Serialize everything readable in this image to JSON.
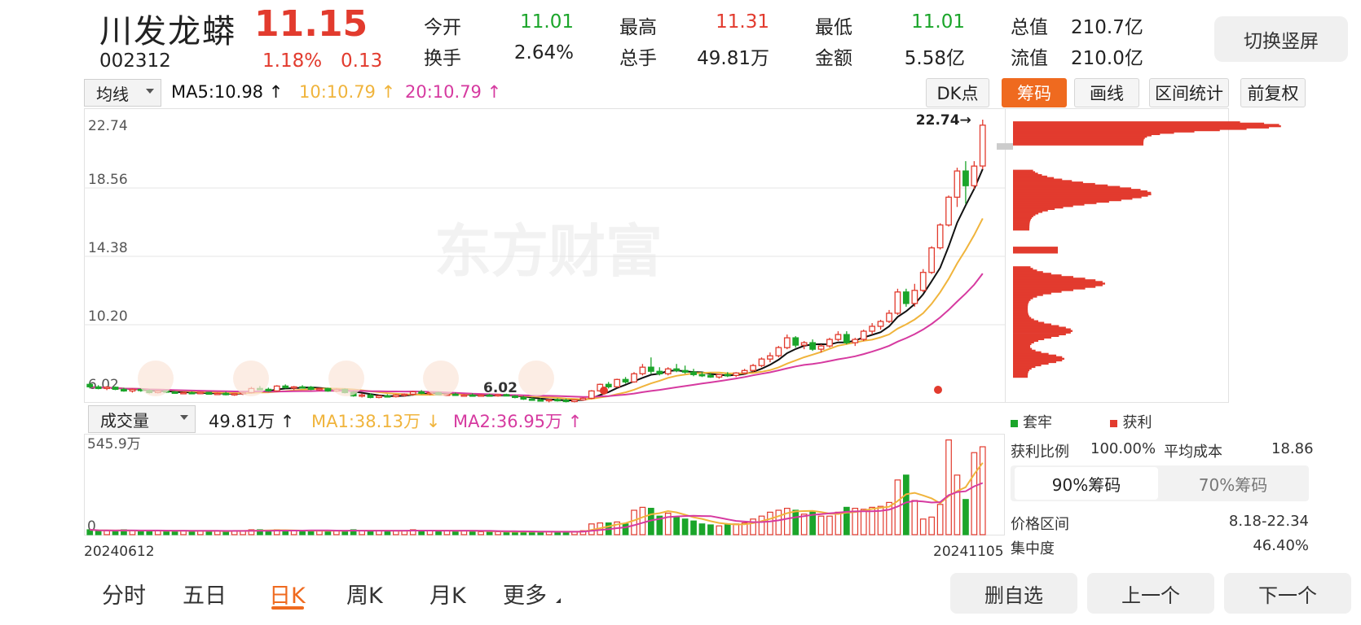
{
  "header": {
    "name": "川发龙蟒",
    "price": "11.15",
    "code": "002312",
    "change_pct": "1.18%",
    "change_abs": "0.13",
    "switch_label": "切换竖屏",
    "quotes": [
      {
        "label": "今开",
        "value": "11.01",
        "color": "green"
      },
      {
        "label": "最高",
        "value": "11.31",
        "color": "red"
      },
      {
        "label": "最低",
        "value": "11.01",
        "color": "green"
      },
      {
        "label": "总值",
        "value": "210.7亿",
        "color": "dark"
      },
      {
        "label": "换手",
        "value": "2.64%",
        "color": "dark"
      },
      {
        "label": "总手",
        "value": "49.81万",
        "color": "dark"
      },
      {
        "label": "金额",
        "value": "5.58亿",
        "color": "dark"
      },
      {
        "label": "流值",
        "value": "210.0亿",
        "color": "dark"
      }
    ]
  },
  "toolbar": {
    "ma_dropdown": "均线",
    "ma5": "MA5:10.98 ↑",
    "ma10": "10:10.79 ↑",
    "ma20": "20:10.79 ↑",
    "dk_label": "DK点",
    "buttons": [
      "筹码",
      "画线",
      "区间统计",
      "前复权"
    ]
  },
  "volume_bar": {
    "dropdown": "成交量",
    "vol": "49.81万 ↑",
    "ma1": "MA1:38.13万 ↓",
    "ma2": "MA2:36.95万 ↑"
  },
  "colors": {
    "up": "#e23b2e",
    "down": "#1ba52a",
    "ma5": "#111111",
    "ma10": "#f0b43c",
    "ma20": "#d63aa0",
    "accent": "#ef6a1f"
  },
  "chart_data": {
    "type": "candlestick",
    "watermark": "东方财富",
    "y_ticks": [
      "22.74",
      "18.56",
      "14.38",
      "10.20",
      "6.02"
    ],
    "ylim": [
      6.02,
      22.74
    ],
    "max_label": "22.74→",
    "low_label": "6.02",
    "x_labels": [
      "20240612",
      "20241105"
    ],
    "volume_max_label": "545.9万",
    "volume_zero_label": "0",
    "candles": [
      [
        6.55,
        6.65,
        6.3,
        6.4
      ],
      [
        6.4,
        6.5,
        6.25,
        6.3
      ],
      [
        6.3,
        6.45,
        6.2,
        6.38
      ],
      [
        6.38,
        6.42,
        6.2,
        6.25
      ],
      [
        6.25,
        6.35,
        6.1,
        6.15
      ],
      [
        6.15,
        6.3,
        6.05,
        6.25
      ],
      [
        6.25,
        6.3,
        6.1,
        6.18
      ],
      [
        6.18,
        6.25,
        6.0,
        6.05
      ],
      [
        6.05,
        6.2,
        6.0,
        6.15
      ],
      [
        6.15,
        6.2,
        6.02,
        6.08
      ],
      [
        6.08,
        6.15,
        5.98,
        6.02
      ],
      [
        6.02,
        6.1,
        5.95,
        6.05
      ],
      [
        6.05,
        6.12,
        5.95,
        5.98
      ],
      [
        5.98,
        6.1,
        5.95,
        6.06
      ],
      [
        6.06,
        6.1,
        5.92,
        5.95
      ],
      [
        5.95,
        6.05,
        5.9,
        6.0
      ],
      [
        6.0,
        6.1,
        5.88,
        5.92
      ],
      [
        5.92,
        6.0,
        5.85,
        5.98
      ],
      [
        5.98,
        6.1,
        5.9,
        6.05
      ],
      [
        6.05,
        6.4,
        6.0,
        6.3
      ],
      [
        6.3,
        6.45,
        6.2,
        6.25
      ],
      [
        6.25,
        6.35,
        6.1,
        6.15
      ],
      [
        6.15,
        6.5,
        6.1,
        6.45
      ],
      [
        6.45,
        6.55,
        6.3,
        6.35
      ],
      [
        6.35,
        6.45,
        6.2,
        6.4
      ],
      [
        6.4,
        6.5,
        6.3,
        6.38
      ],
      [
        6.38,
        6.45,
        6.2,
        6.25
      ],
      [
        6.25,
        6.35,
        6.15,
        6.3
      ],
      [
        6.3,
        6.35,
        6.1,
        6.15
      ],
      [
        6.15,
        6.3,
        6.1,
        6.25
      ],
      [
        6.25,
        6.3,
        6.0,
        6.05
      ],
      [
        6.05,
        6.15,
        5.8,
        5.85
      ],
      [
        5.85,
        6.0,
        5.75,
        5.9
      ],
      [
        5.9,
        6.0,
        5.7,
        5.75
      ],
      [
        5.75,
        5.9,
        5.7,
        5.85
      ],
      [
        5.85,
        5.95,
        5.75,
        5.8
      ],
      [
        5.8,
        5.95,
        5.75,
        5.9
      ],
      [
        5.9,
        6.0,
        5.8,
        5.95
      ],
      [
        5.95,
        6.15,
        5.85,
        6.1
      ],
      [
        6.1,
        6.2,
        5.95,
        6.0
      ],
      [
        6.0,
        6.1,
        5.9,
        6.05
      ],
      [
        6.05,
        6.1,
        5.9,
        5.92
      ],
      [
        5.92,
        6.0,
        5.85,
        5.95
      ],
      [
        5.95,
        6.05,
        5.85,
        5.88
      ],
      [
        5.88,
        5.95,
        5.8,
        5.9
      ],
      [
        5.9,
        6.0,
        5.82,
        5.85
      ],
      [
        5.85,
        5.95,
        5.8,
        5.9
      ],
      [
        5.9,
        5.98,
        5.82,
        5.86
      ],
      [
        5.86,
        5.95,
        5.8,
        5.92
      ],
      [
        5.92,
        5.98,
        5.82,
        5.84
      ],
      [
        5.84,
        5.9,
        5.7,
        5.75
      ],
      [
        5.75,
        5.85,
        5.6,
        5.65
      ],
      [
        5.65,
        5.75,
        5.55,
        5.6
      ],
      [
        5.6,
        5.7,
        5.5,
        5.55
      ],
      [
        5.55,
        5.65,
        5.45,
        5.62
      ],
      [
        5.62,
        5.7,
        5.5,
        5.58
      ],
      [
        5.58,
        5.68,
        5.45,
        5.5
      ],
      [
        5.5,
        5.62,
        5.45,
        5.6
      ],
      [
        5.6,
        5.75,
        5.55,
        5.7
      ],
      [
        5.7,
        6.2,
        5.65,
        6.15
      ],
      [
        6.15,
        6.6,
        6.1,
        6.55
      ],
      [
        6.55,
        6.7,
        6.3,
        6.4
      ],
      [
        6.4,
        6.9,
        6.35,
        6.85
      ],
      [
        6.85,
        7.0,
        6.6,
        6.7
      ],
      [
        6.7,
        7.3,
        6.65,
        7.2
      ],
      [
        7.2,
        7.8,
        7.1,
        7.6
      ],
      [
        7.6,
        8.2,
        7.2,
        7.35
      ],
      [
        7.35,
        7.6,
        7.1,
        7.2
      ],
      [
        7.2,
        7.6,
        7.1,
        7.5
      ],
      [
        7.5,
        7.8,
        7.3,
        7.4
      ],
      [
        7.4,
        7.7,
        7.2,
        7.3
      ],
      [
        7.3,
        7.5,
        7.05,
        7.15
      ],
      [
        7.15,
        7.3,
        7.0,
        7.1
      ],
      [
        7.1,
        7.25,
        6.95,
        7.0
      ],
      [
        7.0,
        7.2,
        6.9,
        7.15
      ],
      [
        7.15,
        7.3,
        7.0,
        7.1
      ],
      [
        7.1,
        7.3,
        7.0,
        7.25
      ],
      [
        7.25,
        7.5,
        7.15,
        7.4
      ],
      [
        7.4,
        7.8,
        7.3,
        7.7
      ],
      [
        7.7,
        8.2,
        7.6,
        8.1
      ],
      [
        8.1,
        8.5,
        7.9,
        8.3
      ],
      [
        8.3,
        8.9,
        8.2,
        8.8
      ],
      [
        8.8,
        9.6,
        8.7,
        9.4
      ],
      [
        9.4,
        9.5,
        8.8,
        8.95
      ],
      [
        8.95,
        9.2,
        8.7,
        9.1
      ],
      [
        9.1,
        9.3,
        8.6,
        8.7
      ],
      [
        8.7,
        9.0,
        8.5,
        8.9
      ],
      [
        8.9,
        9.4,
        8.8,
        9.3
      ],
      [
        9.3,
        9.8,
        9.2,
        9.6
      ],
      [
        9.6,
        9.8,
        9.0,
        9.1
      ],
      [
        9.1,
        9.4,
        8.9,
        9.3
      ],
      [
        9.3,
        9.9,
        9.2,
        9.8
      ],
      [
        9.8,
        10.3,
        9.6,
        10.1
      ],
      [
        10.1,
        10.5,
        9.9,
        10.4
      ],
      [
        10.4,
        11.1,
        10.3,
        10.9
      ],
      [
        10.9,
        12.4,
        10.8,
        12.2
      ],
      [
        12.2,
        12.4,
        11.3,
        11.5
      ],
      [
        11.5,
        12.7,
        11.3,
        12.3
      ],
      [
        12.3,
        13.6,
        12.2,
        13.4
      ],
      [
        13.4,
        15.0,
        13.3,
        14.9
      ],
      [
        14.9,
        16.4,
        14.8,
        16.3
      ],
      [
        16.3,
        18.1,
        16.2,
        18.0
      ],
      [
        18.0,
        19.8,
        17.4,
        19.6
      ],
      [
        19.6,
        20.2,
        17.6,
        18.7
      ],
      [
        18.7,
        20.2,
        18.5,
        19.9
      ],
      [
        19.9,
        22.74,
        19.7,
        22.4
      ]
    ],
    "volumes": [
      0.05,
      0.04,
      0.04,
      0.04,
      0.05,
      0.04,
      0.04,
      0.04,
      0.04,
      0.04,
      0.04,
      0.04,
      0.03,
      0.04,
      0.04,
      0.04,
      0.03,
      0.04,
      0.04,
      0.05,
      0.05,
      0.04,
      0.05,
      0.04,
      0.04,
      0.04,
      0.04,
      0.04,
      0.04,
      0.04,
      0.04,
      0.05,
      0.04,
      0.04,
      0.04,
      0.04,
      0.04,
      0.04,
      0.05,
      0.04,
      0.04,
      0.04,
      0.04,
      0.04,
      0.04,
      0.04,
      0.03,
      0.03,
      0.03,
      0.03,
      0.03,
      0.03,
      0.03,
      0.03,
      0.03,
      0.03,
      0.03,
      0.03,
      0.04,
      0.11,
      0.12,
      0.12,
      0.13,
      0.11,
      0.25,
      0.28,
      0.27,
      0.19,
      0.22,
      0.18,
      0.16,
      0.14,
      0.11,
      0.1,
      0.09,
      0.11,
      0.11,
      0.12,
      0.16,
      0.19,
      0.23,
      0.25,
      0.27,
      0.25,
      0.21,
      0.24,
      0.19,
      0.19,
      0.23,
      0.28,
      0.27,
      0.26,
      0.28,
      0.29,
      0.33,
      0.56,
      0.61,
      0.35,
      0.16,
      0.18,
      0.31,
      0.97,
      0.61,
      0.36,
      0.84,
      0.9
    ]
  },
  "chip_panel": {
    "legend_loss": "套牢",
    "legend_profit": "获利",
    "profit_ratio_label": "获利比例",
    "profit_ratio": "100.00%",
    "avg_cost_label": "平均成本",
    "avg_cost": "18.86",
    "tab_90": "90%筹码",
    "tab_70": "70%筹码",
    "range_label": "价格区间",
    "range": "8.18-22.34",
    "concentration_label": "集中度",
    "concentration": "46.40%"
  },
  "bottom": {
    "tabs": [
      "分时",
      "五日",
      "日K",
      "周K",
      "月K",
      "更多"
    ],
    "active_tab": "日K",
    "buttons": [
      "删自选",
      "上一个",
      "下一个"
    ]
  }
}
